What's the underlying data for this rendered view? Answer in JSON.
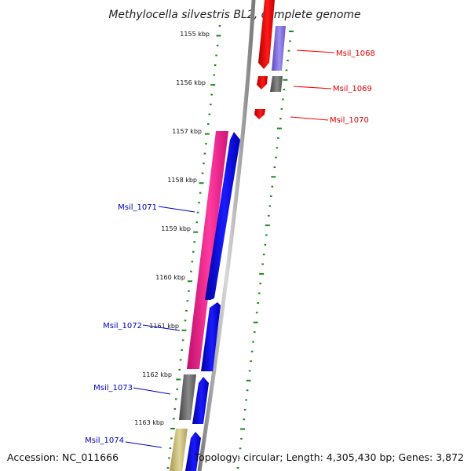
{
  "title": "Methylocella silvestris BL2, complete genome",
  "accession": "Accession: NC_011666",
  "summary": "Topology: circular; Length: 4,305,430 bp; Genes: 3,872",
  "ticks": [
    "1155 kbp",
    "1156 kbp",
    "1157 kbp",
    "1158 kbp",
    "1159 kbp",
    "1160 kbp",
    "1161 kbp",
    "1162 kbp",
    "1163 kbp"
  ],
  "genes": [
    {
      "label": "Msil_1068",
      "color": "#ff0000"
    },
    {
      "label": "Msil_1069",
      "color": "#ff0000"
    },
    {
      "label": "Msil_1070",
      "color": "#ff0000"
    },
    {
      "label": "Msil_1071",
      "color": "#0000c0"
    },
    {
      "label": "Msil_1072",
      "color": "#0000c0"
    },
    {
      "label": "Msil_1073",
      "color": "#0000c0"
    },
    {
      "label": "Msil_1074",
      "color": "#0000c0"
    }
  ],
  "colors": {
    "reverse_strand": "#ff0000",
    "forward_strand": "#0000ff",
    "pink_feature": "#ff1493",
    "purple_feature": "#7b68d8",
    "gray_feature": "#666666",
    "tan_feature": "#c8b87a",
    "tick_mark": "#1a8a1a",
    "backbone": "#9a9a9a"
  }
}
